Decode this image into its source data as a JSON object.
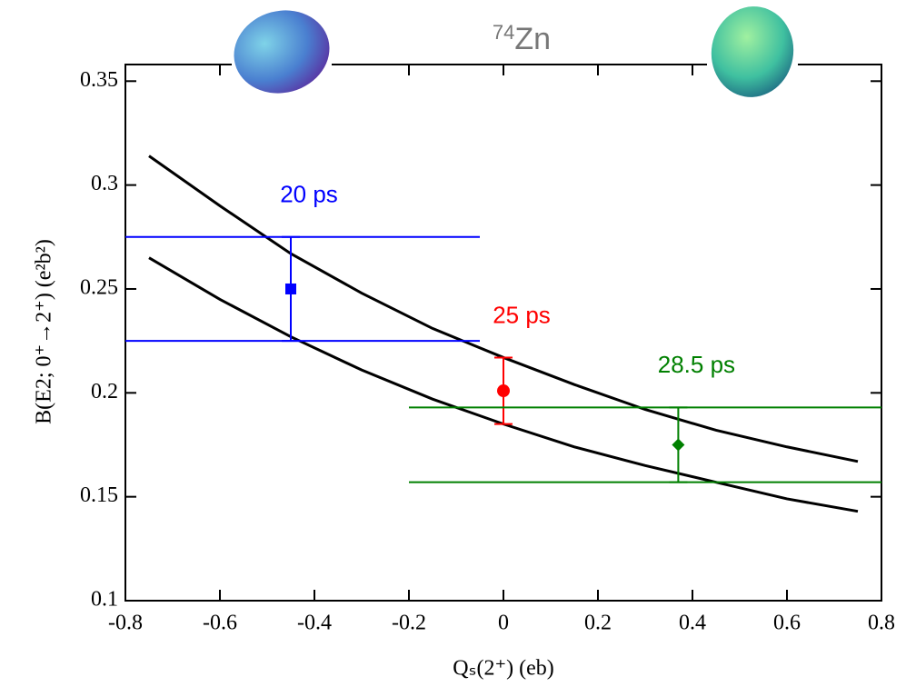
{
  "chart_data": {
    "type": "line",
    "title": {
      "sup": "74",
      "main": "Zn"
    },
    "xlabel": "Qₛ(2⁺)  (eb)",
    "ylabel": "B(E2; 0⁺→2⁺)  (e²b²)",
    "xlim": [
      -0.8,
      0.8
    ],
    "ylim": [
      0.1,
      0.358
    ],
    "xticks": [
      -0.8,
      -0.6,
      -0.4,
      -0.2,
      0,
      0.2,
      0.4,
      0.6,
      0.8
    ],
    "yticks": [
      0.1,
      0.15,
      0.2,
      0.25,
      0.3,
      0.35
    ],
    "curves": [
      {
        "color": "#000000",
        "x": [
          -0.75,
          -0.6,
          -0.45,
          -0.3,
          -0.15,
          0,
          0.15,
          0.3,
          0.45,
          0.6,
          0.75
        ],
        "values": [
          0.314,
          0.29,
          0.267,
          0.248,
          0.231,
          0.217,
          0.204,
          0.192,
          0.182,
          0.174,
          0.167
        ]
      },
      {
        "color": "#000000",
        "x": [
          -0.75,
          -0.6,
          -0.45,
          -0.3,
          -0.15,
          0,
          0.15,
          0.3,
          0.45,
          0.6,
          0.75
        ],
        "values": [
          0.265,
          0.245,
          0.227,
          0.211,
          0.197,
          0.185,
          0.174,
          0.165,
          0.157,
          0.149,
          0.143
        ]
      }
    ],
    "points": [
      {
        "label": "20 ps",
        "color": "#0000ff",
        "marker": "square",
        "x": -0.45,
        "y": 0.25,
        "yerr": 0.025,
        "bands": [
          {
            "y": 0.275,
            "xmin": -0.8,
            "xmax": -0.05
          },
          {
            "y": 0.225,
            "xmin": -0.8,
            "xmax": -0.05
          }
        ]
      },
      {
        "label": "25 ps",
        "color": "#ff0000",
        "marker": "circle",
        "x": 0,
        "y": 0.201,
        "yerr": 0.016,
        "bands": []
      },
      {
        "label": "28.5 ps",
        "color": "#008000",
        "marker": "diamond",
        "x": 0.37,
        "y": 0.175,
        "yerr": 0.018,
        "bands": [
          {
            "y": 0.193,
            "xmin": -0.2,
            "xmax": 0.8
          },
          {
            "y": 0.157,
            "xmin": -0.2,
            "xmax": 0.8
          }
        ]
      }
    ]
  }
}
